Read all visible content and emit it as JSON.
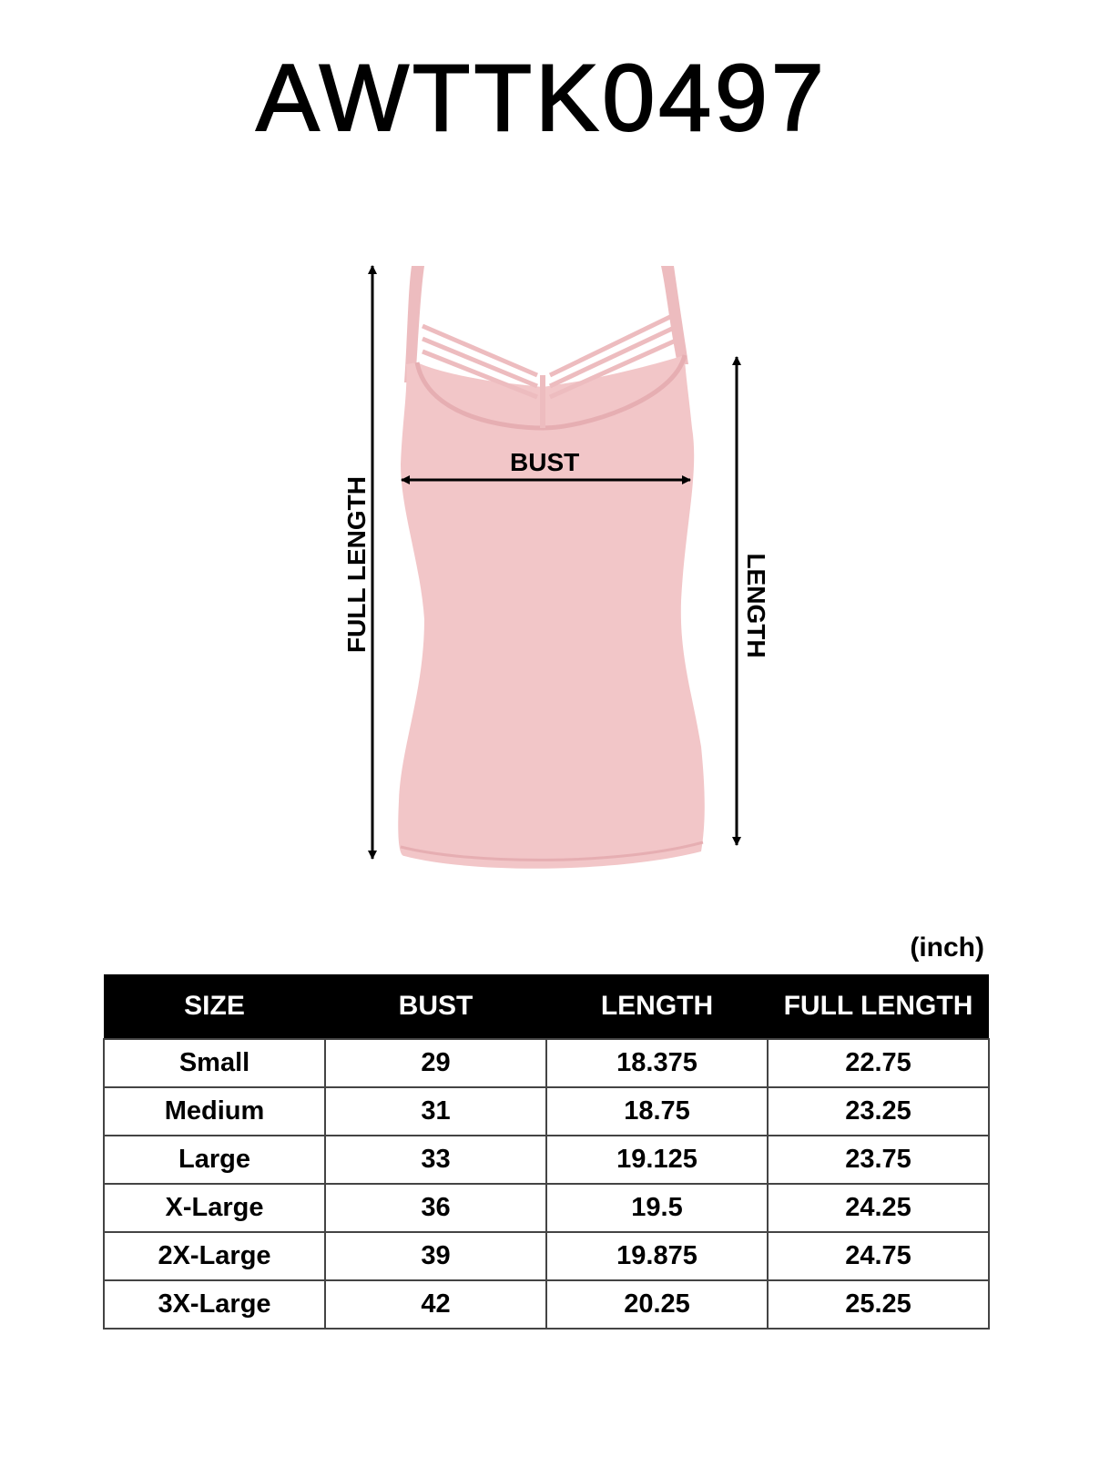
{
  "title": "AWTTK0497",
  "diagram": {
    "garment_color": "#f2c6c8",
    "labels": {
      "bust": "BUST",
      "full_length": "FULL LENGTH",
      "length": "LENGTH"
    }
  },
  "unit": "(inch)",
  "table": {
    "headers": [
      "SIZE",
      "BUST",
      "LENGTH",
      "FULL LENGTH"
    ],
    "rows": [
      [
        "Small",
        "29",
        "18.375",
        "22.75"
      ],
      [
        "Medium",
        "31",
        "18.75",
        "23.25"
      ],
      [
        "Large",
        "33",
        "19.125",
        "23.75"
      ],
      [
        "X-Large",
        "36",
        "19.5",
        "24.25"
      ],
      [
        "2X-Large",
        "39",
        "19.875",
        "24.75"
      ],
      [
        "3X-Large",
        "42",
        "20.25",
        "25.25"
      ]
    ]
  }
}
